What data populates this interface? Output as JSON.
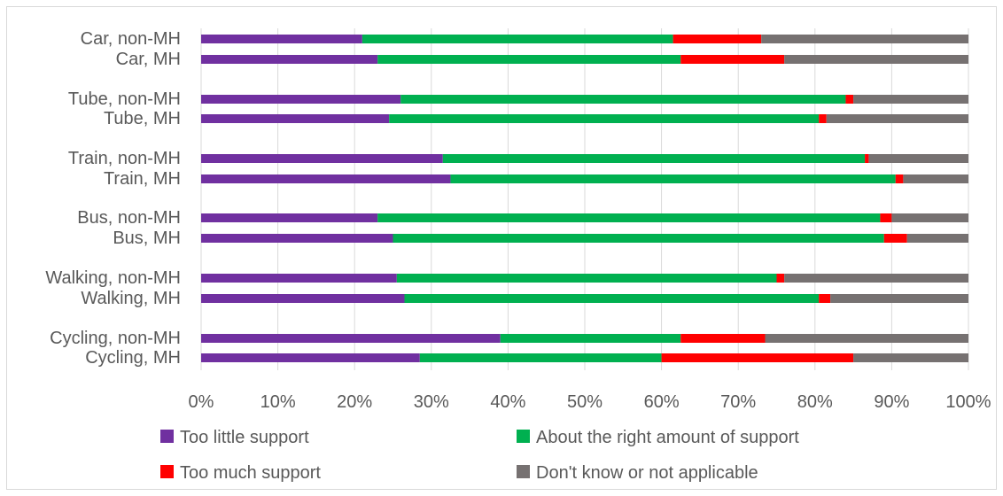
{
  "chart_data": {
    "type": "bar",
    "orientation": "horizontal",
    "stacked": "percent",
    "categories": [
      "Car, non-MH",
      "Car, MH",
      "Tube, non-MH",
      "Tube, MH",
      "Train, non-MH",
      "Train, MH",
      "Bus, non-MH",
      "Bus, MH",
      "Walking, non-MH",
      "Walking, MH",
      "Cycling, non-MH",
      "Cycling, MH"
    ],
    "series": [
      {
        "name": "Too little support",
        "color": "#7030a0",
        "values": [
          21,
          23,
          26,
          24.5,
          31.5,
          32.5,
          23,
          25,
          25.5,
          26.5,
          39,
          28.5
        ]
      },
      {
        "name": "About the right amount of support",
        "color": "#00b050",
        "values": [
          40.5,
          39.5,
          58,
          56,
          55,
          58,
          65.5,
          64,
          49.5,
          54,
          23.5,
          31.5
        ]
      },
      {
        "name": "Too much support",
        "color": "#ff0000",
        "values": [
          11.5,
          13.5,
          1,
          1,
          0.5,
          1,
          1.5,
          3,
          1,
          1.5,
          11,
          25
        ]
      },
      {
        "name": "Don't know or not applicable",
        "color": "#767171",
        "values": [
          27,
          24,
          15,
          18.5,
          13,
          8.5,
          10,
          8,
          24,
          18,
          26.5,
          15
        ]
      }
    ],
    "x_ticks": [
      "0%",
      "10%",
      "20%",
      "30%",
      "40%",
      "50%",
      "60%",
      "70%",
      "80%",
      "90%",
      "100%"
    ],
    "xlim": [
      0,
      100
    ],
    "grid": true,
    "legend_position": "bottom",
    "title": "",
    "xlabel": "",
    "ylabel": ""
  }
}
